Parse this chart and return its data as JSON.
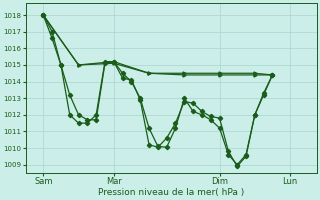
{
  "xlabel": "Pression niveau de la mer( hPa )",
  "bg_color": "#cceee8",
  "grid_color": "#aad4ce",
  "line_color": "#1a5c1a",
  "ylim": [
    1008.5,
    1018.7
  ],
  "yticks": [
    1009,
    1010,
    1011,
    1012,
    1013,
    1014,
    1015,
    1016,
    1017,
    1018
  ],
  "xtick_labels": [
    "Sam",
    "Mar",
    "Dim",
    "Lun"
  ],
  "xtick_positions": [
    2,
    10,
    22,
    30
  ],
  "xlim": [
    0,
    33
  ],
  "series1": [
    [
      2,
      1018
    ],
    [
      3,
      1016.6
    ],
    [
      4,
      1015.0
    ],
    [
      5,
      1013.2
    ],
    [
      6,
      1012.0
    ],
    [
      7,
      1011.7
    ],
    [
      8,
      1011.7
    ],
    [
      9,
      1015.1
    ],
    [
      10,
      1015.2
    ],
    [
      11,
      1014.5
    ],
    [
      12,
      1014.0
    ],
    [
      13,
      1013.0
    ],
    [
      14,
      1011.2
    ],
    [
      15,
      1010.1
    ],
    [
      16,
      1010.05
    ],
    [
      17,
      1011.2
    ],
    [
      18,
      1013.0
    ],
    [
      19,
      1012.2
    ],
    [
      20,
      1012.0
    ],
    [
      21,
      1011.7
    ],
    [
      22,
      1011.2
    ],
    [
      23,
      1009.6
    ],
    [
      24,
      1009.0
    ],
    [
      25,
      1009.6
    ],
    [
      26,
      1012.0
    ],
    [
      27,
      1013.3
    ],
    [
      28,
      1014.4
    ]
  ],
  "series2": [
    [
      2,
      1018
    ],
    [
      3,
      1017.0
    ],
    [
      4,
      1015.0
    ],
    [
      5,
      1012.0
    ],
    [
      6,
      1011.5
    ],
    [
      7,
      1011.5
    ],
    [
      8,
      1012.0
    ],
    [
      9,
      1015.2
    ],
    [
      10,
      1015.2
    ],
    [
      11,
      1014.2
    ],
    [
      12,
      1014.1
    ],
    [
      13,
      1012.9
    ],
    [
      14,
      1010.2
    ],
    [
      15,
      1010.05
    ],
    [
      16,
      1010.6
    ],
    [
      17,
      1011.5
    ],
    [
      18,
      1012.8
    ],
    [
      19,
      1012.7
    ],
    [
      20,
      1012.2
    ],
    [
      21,
      1011.9
    ],
    [
      22,
      1011.8
    ],
    [
      23,
      1009.8
    ],
    [
      24,
      1008.9
    ],
    [
      25,
      1009.5
    ],
    [
      26,
      1012.0
    ],
    [
      27,
      1013.2
    ],
    [
      28,
      1014.4
    ]
  ],
  "series3": [
    [
      2,
      1018.0
    ],
    [
      6,
      1015.0
    ],
    [
      10,
      1015.1
    ],
    [
      14,
      1014.5
    ],
    [
      18,
      1014.5
    ],
    [
      22,
      1014.5
    ],
    [
      26,
      1014.5
    ],
    [
      28,
      1014.4
    ]
  ],
  "series4": [
    [
      2,
      1018.0
    ],
    [
      6,
      1015.0
    ],
    [
      10,
      1015.2
    ],
    [
      14,
      1014.5
    ],
    [
      18,
      1014.4
    ],
    [
      22,
      1014.4
    ],
    [
      26,
      1014.4
    ],
    [
      28,
      1014.4
    ]
  ]
}
